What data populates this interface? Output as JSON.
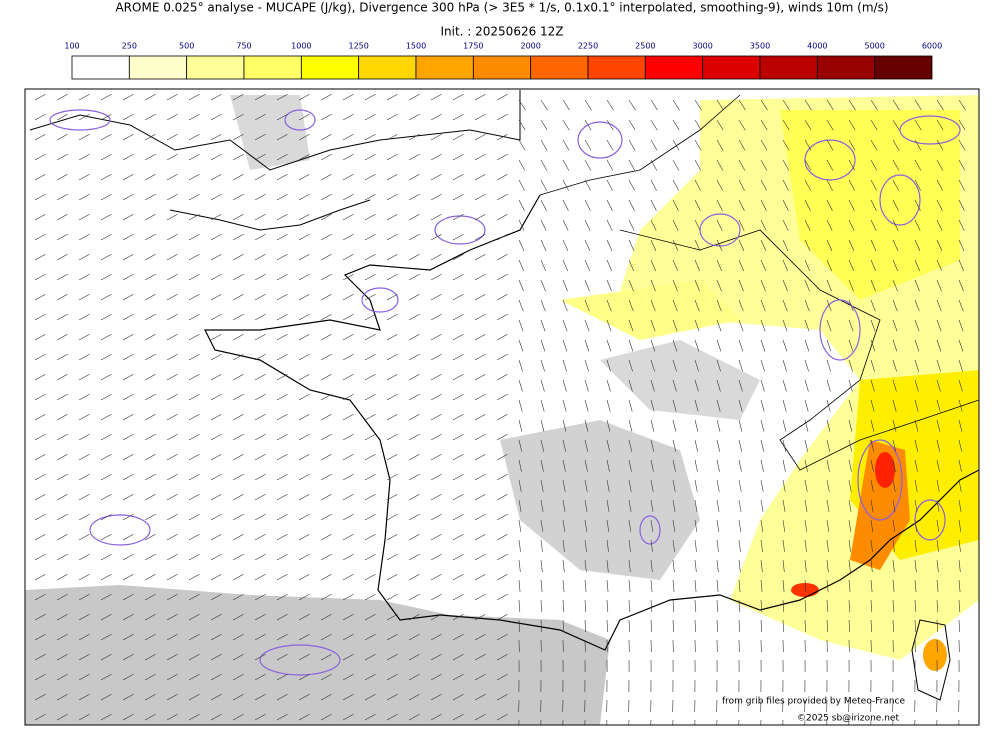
{
  "header": {
    "title": "AROME 0.025° analyse - MUCAPE (J/kg), Divergence 300 hPa (> 3E5 * 1/s, 0.1x0.1° interpolated, smoothing-9), winds 10m (m/s)",
    "init": "Init. : 20250626 12Z"
  },
  "colorbar": {
    "ticks": [
      100,
      250,
      500,
      750,
      1000,
      1250,
      1500,
      1750,
      2000,
      2250,
      2500,
      3000,
      3500,
      4000,
      5000,
      6000
    ],
    "colors": [
      "#ffffff",
      "#ffffcc",
      "#ffff99",
      "#ffff66",
      "#ffff00",
      "#ffd700",
      "#ffa500",
      "#ff8c00",
      "#ff6600",
      "#ff4500",
      "#ff0000",
      "#dd0000",
      "#bb0000",
      "#990000",
      "#660000"
    ]
  },
  "credits": [
    "from grib files provided by Meteo-France",
    "©2025 sb@irizone.net"
  ]
}
